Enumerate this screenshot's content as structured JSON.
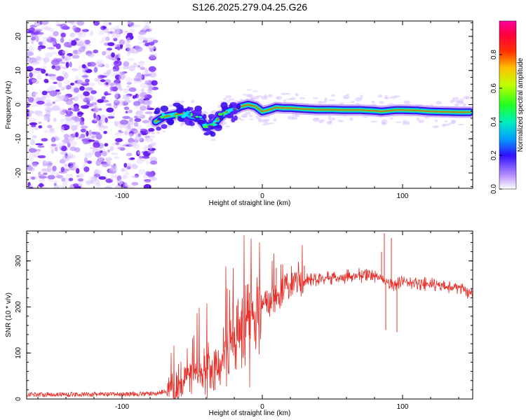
{
  "title": "S126.2025.279.04.25.G26",
  "colors": {
    "snr_line": "#e8302a",
    "axis": "#000000",
    "background": "#ffffff"
  },
  "chart_data": [
    {
      "type": "heatmap",
      "name": "spectrogram",
      "xlabel": "Height of straight line (km)",
      "ylabel": "Frequency (Hz)",
      "xlim": [
        -168,
        150
      ],
      "ylim": [
        -24.5,
        24.5
      ],
      "xticks": [
        -100,
        0,
        100
      ],
      "yticks": [
        -20,
        -10,
        0,
        10,
        20
      ],
      "xtick_labels": [
        "-100",
        "0",
        "100"
      ],
      "ytick_labels": [
        "-20",
        "-10",
        "0",
        "10",
        "20"
      ],
      "noise_region_x": [
        -168,
        -76
      ],
      "carrier_track": {
        "x": [
          -76,
          -70,
          -63,
          -57,
          -50,
          -45,
          -40,
          -35,
          -30,
          -25,
          -20,
          -15,
          -10,
          -5,
          0,
          5,
          10,
          15,
          20,
          30,
          40,
          50,
          60,
          70,
          80,
          85,
          90,
          95,
          100,
          110,
          120,
          130,
          140,
          148
        ],
        "freq": [
          -5,
          -3.5,
          -3,
          -2.5,
          -3.5,
          -3.8,
          -6.5,
          -6,
          -3.5,
          -2,
          -1.5,
          -0.5,
          0,
          -0.5,
          -2,
          -1.5,
          -0.8,
          -1,
          -1,
          -1.3,
          -1.5,
          -1.5,
          -1.6,
          -1.6,
          -1.8,
          -2.0,
          -1.8,
          -1.6,
          -1.6,
          -1.7,
          -2.0,
          -2.1,
          -2.2,
          -2.2
        ]
      },
      "colorbar": {
        "label": "Normalized spectral amplitude",
        "range": [
          0.0,
          1.0
        ],
        "ticks": [
          0.0,
          0.2,
          0.4,
          0.6,
          0.8
        ],
        "tick_labels": [
          "0.0",
          "0.2",
          "0.4",
          "0.6",
          "0.8"
        ]
      }
    },
    {
      "type": "line",
      "name": "snr",
      "xlabel": "Height of straight line (km)",
      "ylabel": "SNR (10 * v/v)",
      "xlim": [
        -168,
        150
      ],
      "ylim": [
        0,
        365
      ],
      "xticks": [
        -100,
        0,
        100
      ],
      "yticks": [
        0,
        100,
        200,
        300
      ],
      "xtick_labels": [
        "-100",
        "0",
        "100"
      ],
      "ytick_labels": [
        "0",
        "100",
        "200",
        "300"
      ],
      "series": [
        {
          "name": "SNR",
          "x": [
            -168,
            -150,
            -130,
            -110,
            -90,
            -75,
            -68,
            -62,
            -55,
            -50,
            -45,
            -40,
            -35,
            -30,
            -25,
            -20,
            -15,
            -10,
            -5,
            0,
            5,
            10,
            15,
            20,
            25,
            30,
            40,
            50,
            60,
            70,
            80,
            85,
            90,
            95,
            100,
            110,
            120,
            130,
            140,
            150
          ],
          "y": [
            10,
            10,
            10,
            10,
            11,
            12,
            18,
            30,
            45,
            55,
            60,
            65,
            70,
            85,
            110,
            130,
            160,
            175,
            185,
            195,
            205,
            215,
            230,
            245,
            255,
            258,
            262,
            262,
            265,
            268,
            270,
            262,
            250,
            250,
            255,
            250,
            248,
            245,
            242,
            230
          ]
        }
      ],
      "spikes": [
        {
          "x": -25,
          "y": 240
        },
        {
          "x": -10,
          "y": 250
        },
        {
          "x": 10,
          "y": 285
        },
        {
          "x": 30,
          "y": 290
        },
        {
          "x": 85,
          "y": 320
        },
        {
          "x": 87,
          "y": 360
        },
        {
          "x": 88,
          "y": 150
        },
        {
          "x": 92,
          "y": 350
        },
        {
          "x": 96,
          "y": 145
        }
      ]
    }
  ]
}
